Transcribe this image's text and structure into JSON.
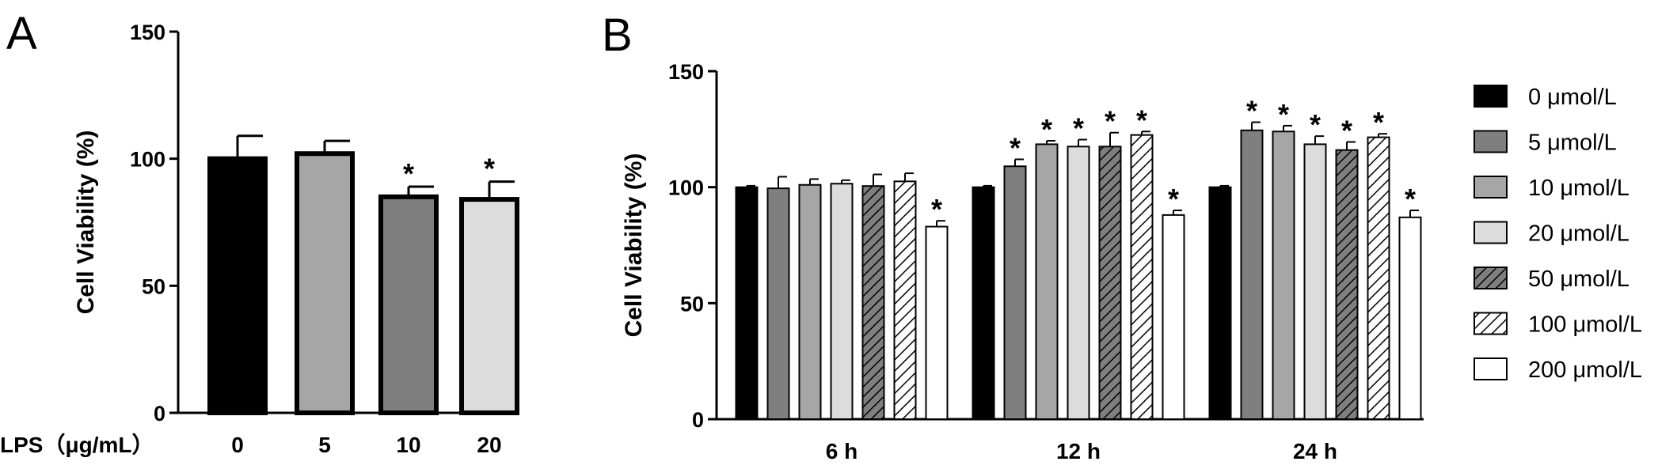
{
  "chart_data": [
    {
      "panel": "A",
      "type": "bar",
      "x_title": "LPS（μg/mL）",
      "categories": [
        "0",
        "5",
        "10",
        "20"
      ],
      "values": [
        100,
        102,
        85,
        84
      ],
      "errors": [
        9,
        5,
        4,
        7
      ],
      "significance": [
        "",
        "",
        "*",
        "*"
      ],
      "colors": [
        "#000000",
        "#a6a6a6",
        "#7f7f7f",
        "#dcdcdc"
      ],
      "ylabel": "Cell Viability (%)",
      "ylim": [
        0,
        150
      ],
      "yticks": [
        0,
        50,
        100,
        150
      ]
    },
    {
      "panel": "B",
      "type": "bar",
      "categories": [
        "6 h",
        "12 h",
        "24 h"
      ],
      "series": [
        {
          "name": "0 μmol/L",
          "fill": "#000000",
          "pattern": "solid",
          "values": [
            100,
            100,
            100
          ],
          "errors": [
            0.6,
            0.6,
            0.6
          ],
          "significance": [
            "",
            "",
            ""
          ]
        },
        {
          "name": "5 μmol/L",
          "fill": "#7f7f7f",
          "pattern": "solid",
          "values": [
            99.5,
            109,
            124.5
          ],
          "errors": [
            5,
            3,
            3.5
          ],
          "significance": [
            "",
            "*",
            "*"
          ]
        },
        {
          "name": "10 μmol/L",
          "fill": "#a6a6a6",
          "pattern": "solid",
          "values": [
            101,
            118.5,
            124
          ],
          "errors": [
            2.5,
            1.5,
            2.5
          ],
          "significance": [
            "",
            "*",
            "*"
          ]
        },
        {
          "name": "20 μmol/L",
          "fill": "#dcdcdc",
          "pattern": "solid",
          "values": [
            101.5,
            117.5,
            118.5
          ],
          "errors": [
            1.5,
            3,
            3.5
          ],
          "significance": [
            "",
            "*",
            "*"
          ]
        },
        {
          "name": "50 μmol/L",
          "fill": "#7f7f7f",
          "pattern": "hatch",
          "values": [
            100.5,
            117.5,
            116
          ],
          "errors": [
            5,
            6,
            3.5
          ],
          "significance": [
            "",
            "*",
            "*"
          ]
        },
        {
          "name": "100 μmol/L",
          "fill": "#ffffff",
          "pattern": "hatch",
          "values": [
            102.5,
            122.5,
            121.5
          ],
          "errors": [
            3.5,
            1.5,
            1.5
          ],
          "significance": [
            "",
            "*",
            "*"
          ]
        },
        {
          "name": "200 μmol/L",
          "fill": "#ffffff",
          "pattern": "solid",
          "values": [
            83,
            88,
            87
          ],
          "errors": [
            2.5,
            2,
            3
          ],
          "significance": [
            "*",
            "*",
            "*"
          ]
        }
      ],
      "ylabel": "Cell Viability (%)",
      "ylim": [
        0,
        150
      ],
      "yticks": [
        0,
        50,
        100,
        150
      ],
      "legend_position": "right"
    }
  ]
}
